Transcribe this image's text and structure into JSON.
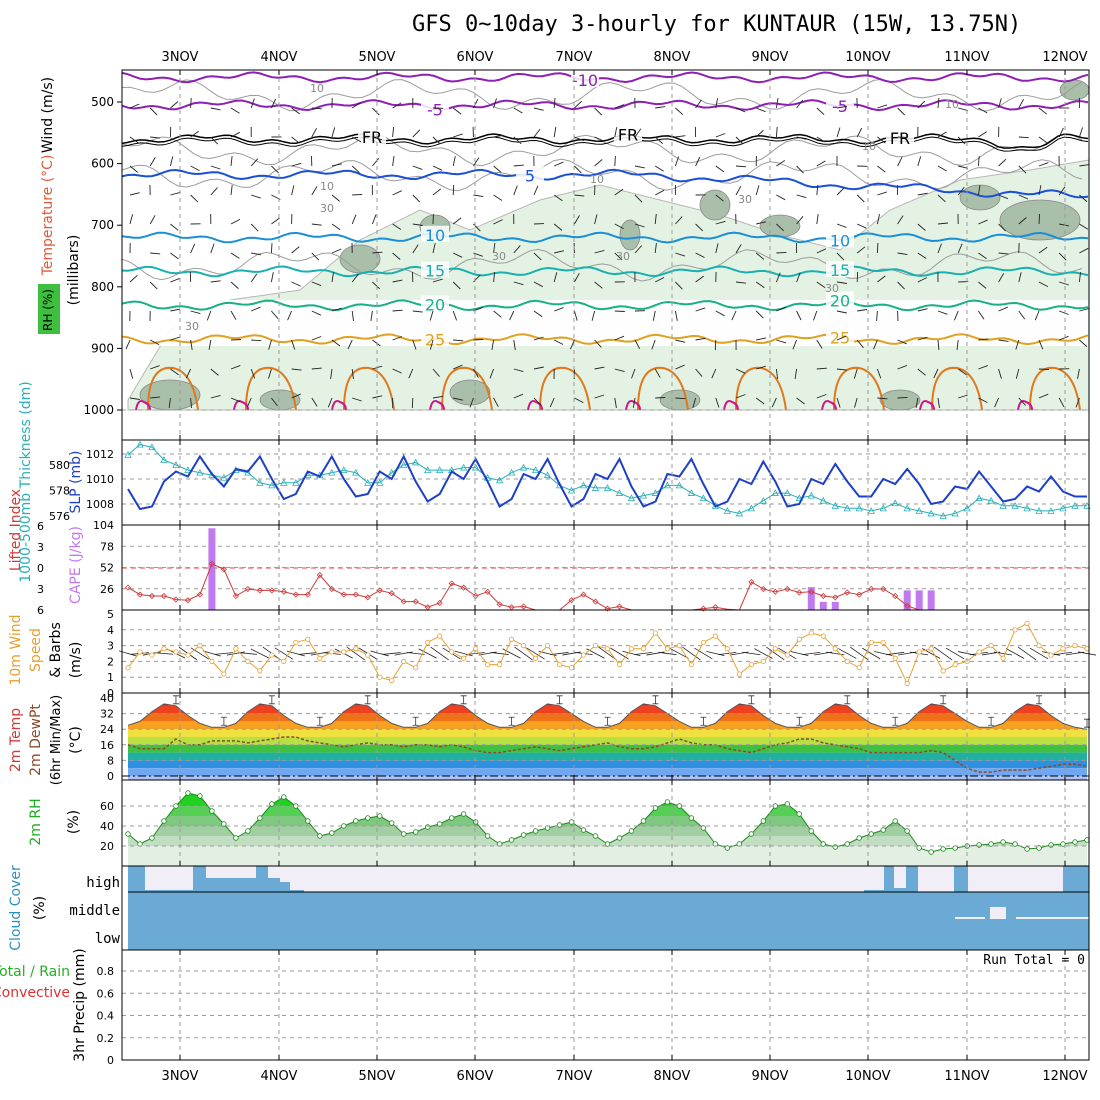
{
  "title": "GFS 0~10day 3-hourly for KUNTAUR (15W, 13.75N)",
  "chart_data": [
    {
      "id": "upper_air",
      "type": "contour",
      "ylabel_parts": [
        "RH (%)",
        "Temperature (°C)",
        "Wind (m/s)"
      ],
      "yunit": "(millibars)",
      "yticks": [
        500,
        600,
        700,
        800,
        900,
        1000
      ],
      "ylim": [
        450,
        1000
      ],
      "x_labels": [
        "3NOV",
        "4NOV",
        "5NOV",
        "6NOV",
        "7NOV",
        "8NOV",
        "9NOV",
        "10NOV",
        "11NOV",
        "12NOV"
      ],
      "temperature_isotherms": [
        {
          "label": "-10",
          "pressure": 460,
          "color": "#8e1fb5"
        },
        {
          "label": "-5",
          "pressure": 505,
          "color": "#8e1fb5"
        },
        {
          "label": "FR",
          "pressure": 560,
          "color": "#000000"
        },
        {
          "label": "5",
          "pressure": 618,
          "color": "#1a4fd6"
        },
        {
          "label": "10",
          "pressure": 720,
          "color": "#1a8fd6"
        },
        {
          "label": "15",
          "pressure": 775,
          "color": "#18b0b0"
        },
        {
          "label": "20",
          "pressure": 830,
          "color": "#18b088"
        },
        {
          "label": "25",
          "pressure": 885,
          "color": "#e0a020"
        }
      ],
      "rh_labels": [
        "10",
        "30"
      ]
    },
    {
      "id": "slp_thickness",
      "type": "line",
      "left_label": "1000-500mb Thickness (dm)",
      "right_label": "SLP (mb)",
      "slp_ticks": [
        1008,
        1010,
        1012
      ],
      "thickness_ticks": [
        576,
        578,
        580
      ],
      "slp_series": [
        1009.2,
        1007.6,
        1007.8,
        1009.8,
        1010.6,
        1010.2,
        1011.8,
        1010.4,
        1009.4,
        1010.8,
        1010.6,
        1011.8,
        1010.0,
        1008.4,
        1008.8,
        1010.6,
        1010.2,
        1011.8,
        1010.0,
        1008.6,
        1008.8,
        1010.6,
        1010.0,
        1011.8,
        1009.8,
        1008.2,
        1008.8,
        1010.6,
        1010.0,
        1011.6,
        1009.8,
        1007.8,
        1008.4,
        1010.4,
        1010.0,
        1011.6,
        1009.6,
        1007.8,
        1008.4,
        1010.4,
        1010.0,
        1011.6,
        1009.4,
        1007.8,
        1008.2,
        1010.4,
        1010.2,
        1011.6,
        1009.6,
        1007.8,
        1008.2,
        1010.0,
        1009.6,
        1011.4,
        1009.8,
        1007.8,
        1008.0,
        1010.0,
        1009.6,
        1011.2,
        1009.8,
        1008.6,
        1008.6,
        1010.0,
        1009.6,
        1010.8,
        1009.6,
        1008.0,
        1008.2,
        1009.4,
        1009.2,
        1010.6,
        1009.4,
        1008.2,
        1008.4,
        1009.4,
        1009.0,
        1010.2,
        1009.0,
        1008.6,
        1008.6
      ],
      "thickness_series": [
        580.8,
        581.6,
        581.4,
        580.4,
        580.0,
        579.6,
        579.4,
        579.2,
        579.0,
        579.6,
        579.4,
        578.6,
        578.4,
        578.6,
        578.6,
        579.2,
        579.2,
        579.4,
        579.6,
        579.4,
        578.6,
        578.6,
        579.4,
        580.0,
        580.2,
        579.6,
        579.6,
        579.6,
        579.8,
        579.8,
        579.0,
        578.8,
        579.4,
        579.8,
        579.6,
        579.2,
        578.4,
        578.0,
        578.4,
        578.2,
        578.2,
        577.8,
        577.4,
        577.6,
        577.8,
        578.4,
        578.4,
        577.8,
        577.4,
        576.8,
        576.4,
        576.2,
        576.6,
        577.2,
        577.8,
        577.8,
        577.4,
        577.6,
        577.2,
        576.8,
        576.6,
        576.6,
        576.4,
        576.6,
        577.0,
        576.6,
        576.4,
        576.2,
        576.0,
        576.2,
        576.6,
        577.4,
        577.2,
        576.8,
        576.8,
        576.6,
        576.4,
        576.4,
        576.6,
        576.8,
        576.8
      ]
    },
    {
      "id": "li_cape",
      "type": "bar+line",
      "left_label": "Lifted Index",
      "right_label": "CAPE (J/kg)",
      "li_ticks": [
        6,
        3,
        0,
        -3,
        -6
      ],
      "cape_ticks": [
        26,
        52,
        78,
        104
      ],
      "li_series": [
        2.8,
        3.8,
        4.0,
        4.0,
        4.5,
        4.6,
        3.8,
        -0.6,
        0.2,
        4.0,
        3.0,
        3.2,
        3.2,
        3.4,
        3.8,
        3.8,
        1.0,
        3.0,
        3.8,
        3.8,
        4.2,
        3.2,
        3.6,
        4.8,
        4.8,
        5.6,
        5.0,
        2.2,
        2.8,
        4.0,
        3.4,
        5.2,
        5.6,
        5.5,
        6.0,
        6.0,
        6.0,
        4.6,
        3.8,
        4.8,
        5.8,
        5.5,
        6.0,
        6.0,
        6.0,
        6.0,
        6.0,
        6.0,
        5.8,
        5.6,
        5.9,
        6.0,
        2.0,
        3.0,
        3.4,
        3.0,
        3.5,
        3.4,
        4.0,
        4.2,
        3.5,
        3.8,
        3.0,
        3.0,
        4.0,
        5.4,
        6.0,
        6.0,
        6.0,
        6.0,
        6.0,
        6.0,
        6.0,
        6.0,
        6.0,
        6.0,
        6.0,
        6.0,
        6.0,
        6.0,
        6.0
      ],
      "cape_bars": [
        {
          "time_index": 7,
          "value": 100
        },
        {
          "time_index": 57,
          "value": 28
        },
        {
          "time_index": 58,
          "value": 10
        },
        {
          "time_index": 59,
          "value": 10
        },
        {
          "time_index": 65,
          "value": 24
        },
        {
          "time_index": 66,
          "value": 24
        },
        {
          "time_index": 67,
          "value": 24
        }
      ]
    },
    {
      "id": "wind10m",
      "type": "line",
      "left_label": "10m Wind Speed & Barbs",
      "unit": "(m/s)",
      "yticks": [
        0,
        1,
        2,
        3,
        4,
        5
      ],
      "speed_series": [
        1.6,
        2.6,
        2.4,
        2.8,
        2.6,
        2.4,
        3.0,
        2.0,
        1.2,
        2.8,
        2.0,
        1.4,
        2.4,
        2.0,
        3.2,
        3.4,
        2.2,
        2.6,
        2.6,
        2.8,
        2.4,
        1.0,
        0.8,
        2.0,
        1.6,
        3.2,
        3.6,
        2.6,
        2.2,
        2.8,
        1.8,
        1.8,
        3.4,
        3.0,
        2.2,
        3.0,
        1.8,
        1.6,
        2.4,
        3.0,
        2.8,
        1.8,
        2.8,
        2.8,
        3.8,
        2.8,
        3.0,
        1.8,
        3.2,
        3.6,
        2.8,
        1.2,
        1.8,
        2.0,
        2.8,
        2.4,
        3.4,
        3.8,
        3.6,
        2.8,
        2.0,
        1.6,
        3.2,
        3.2,
        2.2,
        0.6,
        2.6,
        2.8,
        1.4,
        1.8,
        2.0,
        2.6,
        3.0,
        2.2,
        4.0,
        4.4,
        3.0,
        2.4,
        2.8,
        3.0,
        2.8
      ]
    },
    {
      "id": "temp2m",
      "type": "area",
      "left_label": "2m Temp 2m DewPt (6hr Min/Max)",
      "unit": "(°C)",
      "yticks": [
        0,
        8,
        16,
        24,
        32,
        40
      ],
      "temp_series": [
        26,
        28,
        33,
        37,
        36,
        31,
        27,
        25,
        25,
        27,
        33,
        37,
        36,
        31,
        27,
        25,
        25,
        27,
        33,
        37,
        36,
        31,
        27,
        25,
        25,
        27,
        33,
        37,
        36,
        31,
        27,
        25,
        25,
        27,
        33,
        37,
        36,
        32,
        28,
        25,
        25,
        27,
        33,
        37,
        36,
        32,
        28,
        25,
        25,
        27,
        33,
        37,
        36,
        31,
        27,
        25,
        25,
        27,
        33,
        37,
        36,
        31,
        27,
        25,
        25,
        27,
        33,
        37,
        36,
        32,
        28,
        25,
        25,
        27,
        33,
        37,
        36,
        31,
        27,
        25,
        24
      ],
      "dewpt_series": [
        16,
        14,
        14,
        14,
        19,
        16,
        16,
        18,
        18,
        18,
        17,
        18,
        19,
        20,
        20,
        18,
        17,
        16,
        15,
        16,
        17,
        16,
        16,
        15,
        16,
        16,
        15,
        16,
        15,
        13,
        12,
        12,
        13,
        14,
        15,
        14,
        13,
        14,
        15,
        16,
        17,
        15,
        14,
        14,
        15,
        17,
        19,
        17,
        16,
        16,
        14,
        13,
        12,
        14,
        16,
        17,
        19,
        19,
        17,
        16,
        15,
        14,
        12,
        12,
        12,
        12,
        12,
        13,
        12,
        8,
        4,
        2,
        2,
        3,
        3,
        3,
        4,
        5,
        6,
        6,
        5
      ]
    },
    {
      "id": "rh2m",
      "type": "area",
      "left_label": "2m RH",
      "unit": "(%)",
      "yticks": [
        20,
        40,
        60
      ],
      "rh_series": [
        32,
        22,
        28,
        45,
        60,
        73,
        70,
        55,
        42,
        28,
        35,
        48,
        62,
        69,
        60,
        45,
        30,
        33,
        40,
        45,
        48,
        50,
        43,
        32,
        34,
        39,
        42,
        48,
        52,
        44,
        30,
        22,
        26,
        31,
        35,
        38,
        41,
        44,
        36,
        30,
        22,
        28,
        35,
        45,
        58,
        64,
        60,
        48,
        38,
        22,
        18,
        22,
        32,
        45,
        60,
        62,
        52,
        35,
        22,
        19,
        22,
        28,
        32,
        36,
        45,
        35,
        18,
        14,
        17,
        18,
        20,
        21,
        22,
        24,
        22,
        17,
        18,
        21,
        22,
        24,
        26
      ]
    },
    {
      "id": "cloud",
      "type": "heatmap",
      "left_label": "Cloud Cover",
      "unit": "(%)",
      "levels": [
        "high",
        "middle",
        "low"
      ]
    },
    {
      "id": "precip",
      "type": "bar",
      "left_label_parts": [
        "Total / Rain",
        "Convective"
      ],
      "ylabel": "3hr Precip (mm)",
      "yticks": [
        0,
        0.2,
        0.4,
        0.6,
        0.8
      ],
      "run_total_label": "Run Total = 0",
      "values": []
    }
  ]
}
